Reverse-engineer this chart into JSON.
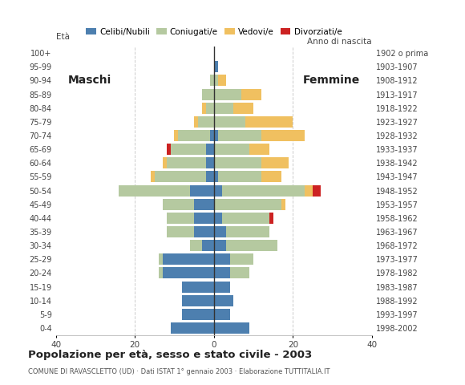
{
  "age_groups": [
    "0-4",
    "5-9",
    "10-14",
    "15-19",
    "20-24",
    "25-29",
    "30-34",
    "35-39",
    "40-44",
    "45-49",
    "50-54",
    "55-59",
    "60-64",
    "65-69",
    "70-74",
    "75-79",
    "80-84",
    "85-89",
    "90-94",
    "95-99",
    "100+"
  ],
  "birth_years": [
    "1998-2002",
    "1993-1997",
    "1988-1992",
    "1983-1987",
    "1978-1982",
    "1973-1977",
    "1968-1972",
    "1963-1967",
    "1958-1962",
    "1953-1957",
    "1948-1952",
    "1943-1947",
    "1938-1942",
    "1933-1937",
    "1928-1932",
    "1923-1927",
    "1918-1922",
    "1913-1917",
    "1908-1912",
    "1903-1907",
    "1902 o prima"
  ],
  "male": {
    "celibe": [
      11,
      8,
      8,
      8,
      13,
      13,
      3,
      5,
      5,
      5,
      6,
      2,
      2,
      2,
      1,
      0,
      0,
      0,
      0,
      0,
      0
    ],
    "coniugato": [
      0,
      0,
      0,
      0,
      1,
      1,
      3,
      7,
      7,
      8,
      18,
      13,
      10,
      9,
      8,
      4,
      2,
      3,
      1,
      0,
      0
    ],
    "vedovo": [
      0,
      0,
      0,
      0,
      0,
      0,
      0,
      0,
      0,
      0,
      0,
      1,
      1,
      0,
      1,
      1,
      1,
      0,
      0,
      0,
      0
    ],
    "divorziato": [
      0,
      0,
      0,
      0,
      0,
      0,
      0,
      0,
      0,
      0,
      0,
      0,
      0,
      1,
      0,
      0,
      0,
      0,
      0,
      0,
      0
    ]
  },
  "female": {
    "nubile": [
      9,
      4,
      5,
      4,
      4,
      4,
      3,
      3,
      2,
      0,
      2,
      1,
      0,
      0,
      1,
      0,
      0,
      0,
      0,
      1,
      0
    ],
    "coniugata": [
      0,
      0,
      0,
      0,
      5,
      6,
      13,
      11,
      12,
      17,
      21,
      11,
      12,
      9,
      11,
      8,
      5,
      7,
      1,
      0,
      0
    ],
    "vedova": [
      0,
      0,
      0,
      0,
      0,
      0,
      0,
      0,
      0,
      1,
      2,
      5,
      7,
      5,
      11,
      12,
      5,
      5,
      2,
      0,
      0
    ],
    "divorziata": [
      0,
      0,
      0,
      0,
      0,
      0,
      0,
      0,
      1,
      0,
      2,
      0,
      0,
      0,
      0,
      0,
      0,
      0,
      0,
      0,
      0
    ]
  },
  "colors": {
    "celibe": "#4d7faf",
    "coniugato": "#b5c9a0",
    "vedovo": "#f0c060",
    "divorziato": "#cc2222"
  },
  "legend_labels": [
    "Celibi/Nubili",
    "Coniugati/e",
    "Vedovi/e",
    "Divorziati/e"
  ],
  "title": "Popolazione per età, sesso e stato civile - 2003",
  "subtitle": "COMUNE DI RAVASCLETTO (UD) · Dati ISTAT 1° gennaio 2003 · Elaborazione TUTTITALIA.IT",
  "label_eta": "Età",
  "label_anno": "Anno di nascita",
  "label_maschi": "Maschi",
  "label_femmine": "Femmine",
  "xlim": 40,
  "background_color": "#ffffff",
  "grid_color": "#cccccc"
}
